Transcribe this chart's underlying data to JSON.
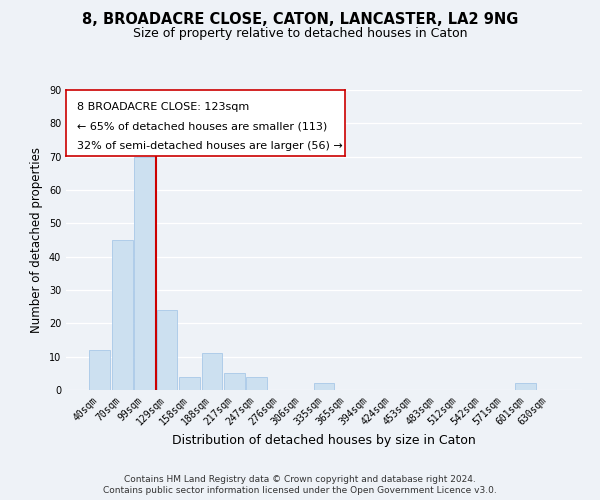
{
  "title": "8, BROADACRE CLOSE, CATON, LANCASTER, LA2 9NG",
  "subtitle": "Size of property relative to detached houses in Caton",
  "xlabel": "Distribution of detached houses by size in Caton",
  "ylabel": "Number of detached properties",
  "bar_color": "#cce0f0",
  "bar_edge_color": "#a8c8e8",
  "bin_labels": [
    "40sqm",
    "70sqm",
    "99sqm",
    "129sqm",
    "158sqm",
    "188sqm",
    "217sqm",
    "247sqm",
    "276sqm",
    "306sqm",
    "335sqm",
    "365sqm",
    "394sqm",
    "424sqm",
    "453sqm",
    "483sqm",
    "512sqm",
    "542sqm",
    "571sqm",
    "601sqm",
    "630sqm"
  ],
  "bar_heights": [
    12,
    45,
    70,
    24,
    4,
    11,
    5,
    4,
    0,
    0,
    2,
    0,
    0,
    0,
    0,
    0,
    0,
    0,
    0,
    2,
    0
  ],
  "ylim": [
    0,
    90
  ],
  "yticks": [
    0,
    10,
    20,
    30,
    40,
    50,
    60,
    70,
    80,
    90
  ],
  "vline_color": "#cc0000",
  "annotation_line1": "8 BROADACRE CLOSE: 123sqm",
  "annotation_line2": "← 65% of detached houses are smaller (113)",
  "annotation_line3": "32% of semi-detached houses are larger (56) →",
  "footer_line1": "Contains HM Land Registry data © Crown copyright and database right 2024.",
  "footer_line2": "Contains public sector information licensed under the Open Government Licence v3.0.",
  "background_color": "#eef2f7",
  "grid_color": "#ffffff",
  "title_fontsize": 10.5,
  "subtitle_fontsize": 9,
  "xlabel_fontsize": 9,
  "ylabel_fontsize": 8.5,
  "tick_fontsize": 7,
  "annotation_fontsize": 8,
  "footer_fontsize": 6.5
}
